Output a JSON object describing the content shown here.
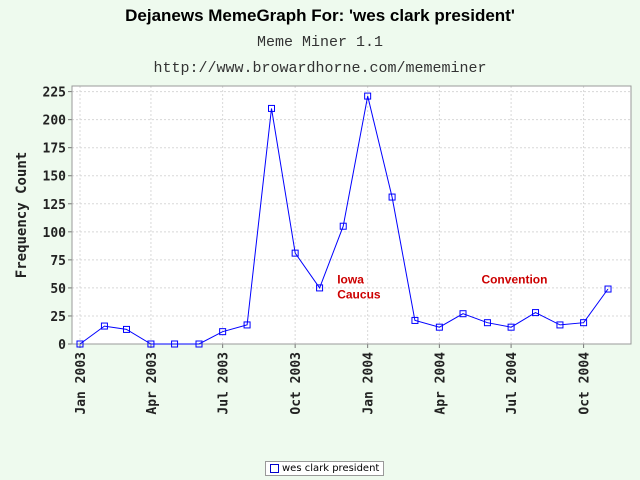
{
  "header": {
    "title": "Dejanews MemeGraph For: 'wes clark president'",
    "subtitle": "Meme Miner 1.1",
    "url": "http://www.browardhorne.com/mememiner"
  },
  "chart_data": {
    "type": "line",
    "title": "Dejanews MemeGraph For: 'wes clark president'",
    "ylabel": "Frequency Count",
    "xlabel": "",
    "ylim": [
      0,
      230
    ],
    "x_range_months": [
      "2003-01-01",
      "2004-11-20"
    ],
    "y_ticks": [
      0,
      25,
      50,
      75,
      100,
      125,
      150,
      175,
      200,
      225
    ],
    "x_ticks": [
      {
        "label": "Jan 2003",
        "date": "2003-01-01"
      },
      {
        "label": "Apr 2003",
        "date": "2003-04-01"
      },
      {
        "label": "Jul 2003",
        "date": "2003-07-01"
      },
      {
        "label": "Oct 2003",
        "date": "2003-10-01"
      },
      {
        "label": "Jan 2004",
        "date": "2004-01-01"
      },
      {
        "label": "Apr 2004",
        "date": "2004-04-01"
      },
      {
        "label": "Jul 2004",
        "date": "2004-07-01"
      },
      {
        "label": "Oct 2004",
        "date": "2004-10-01"
      }
    ],
    "grid": true,
    "legend_position": "bottom-center",
    "series": [
      {
        "name": "wes clark president",
        "color": "#0000ff",
        "marker": "square",
        "points": [
          {
            "x": "2003-01-01",
            "y": 0
          },
          {
            "x": "2003-02-01",
            "y": 16
          },
          {
            "x": "2003-03-01",
            "y": 13
          },
          {
            "x": "2003-04-01",
            "y": 0
          },
          {
            "x": "2003-05-01",
            "y": 0
          },
          {
            "x": "2003-06-01",
            "y": 0
          },
          {
            "x": "2003-07-01",
            "y": 11
          },
          {
            "x": "2003-08-01",
            "y": 17
          },
          {
            "x": "2003-09-01",
            "y": 210
          },
          {
            "x": "2003-10-01",
            "y": 81
          },
          {
            "x": "2003-11-01",
            "y": 50
          },
          {
            "x": "2003-12-01",
            "y": 105
          },
          {
            "x": "2004-01-01",
            "y": 221
          },
          {
            "x": "2004-02-01",
            "y": 131
          },
          {
            "x": "2004-03-01",
            "y": 21
          },
          {
            "x": "2004-04-01",
            "y": 15
          },
          {
            "x": "2004-05-01",
            "y": 27
          },
          {
            "x": "2004-06-01",
            "y": 19
          },
          {
            "x": "2004-07-01",
            "y": 15
          },
          {
            "x": "2004-08-01",
            "y": 28
          },
          {
            "x": "2004-09-01",
            "y": 17
          },
          {
            "x": "2004-10-01",
            "y": 19
          },
          {
            "x": "2004-11-01",
            "y": 49
          }
        ]
      }
    ],
    "annotations": [
      {
        "text_lines": [
          "Iowa",
          "Caucus"
        ],
        "color": "#cc0000",
        "x": "2003-12-01",
        "y": 54
      },
      {
        "text_lines": [
          "Convention"
        ],
        "color": "#cc0000",
        "x": "2004-06-01",
        "y": 54
      }
    ]
  },
  "legend": {
    "label": "wes clark president"
  }
}
